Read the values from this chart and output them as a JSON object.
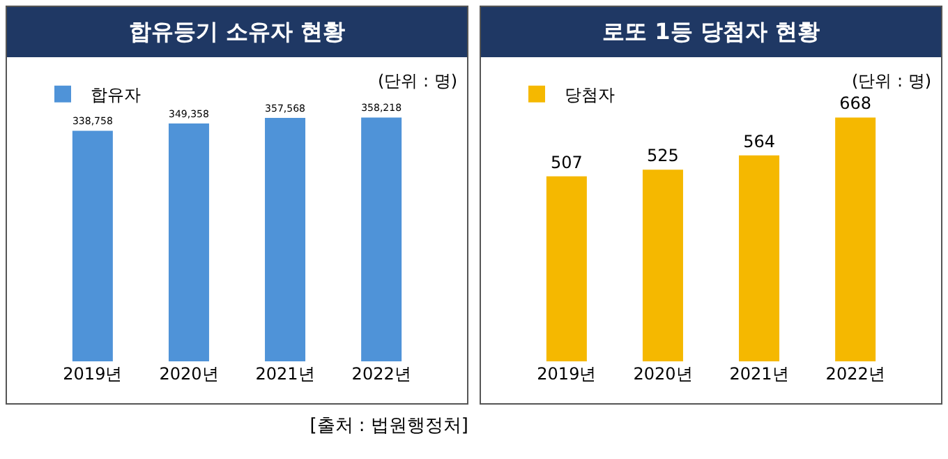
{
  "chart_data": [
    {
      "type": "bar",
      "title": "합유등기 소유자 현황",
      "categories": [
        "2019년",
        "2020년",
        "2021년",
        "2022년"
      ],
      "series": [
        {
          "name": "합유자",
          "color": "#4f93d8",
          "values": [
            338758,
            349358,
            357568,
            358218
          ],
          "value_labels": [
            "338,758",
            "349,358",
            "357,568",
            "358,218"
          ]
        }
      ],
      "legend": "top left",
      "annotations": [
        "(단위 : 명)",
        "[출처 : 법원행정처]"
      ]
    },
    {
      "type": "bar",
      "title": "로또 1등 당첨자 현황",
      "categories": [
        "2019년",
        "2020년",
        "2021년",
        "2022년"
      ],
      "series": [
        {
          "name": "당첨자",
          "color": "#f5b800",
          "values": [
            507,
            525,
            564,
            668
          ]
        }
      ],
      "data_labels": true,
      "legend": "top left",
      "annotations": [
        "(단위 : 명)"
      ]
    }
  ]
}
